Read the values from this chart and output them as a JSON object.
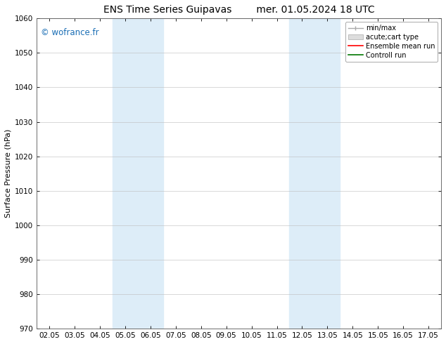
{
  "title": "ENS Time Series Guipavas",
  "title2": "mer. 01.05.2024 18 UTC",
  "ylabel": "Surface Pressure (hPa)",
  "ylim": [
    970,
    1060
  ],
  "yticks": [
    970,
    980,
    990,
    1000,
    1010,
    1020,
    1030,
    1040,
    1050,
    1060
  ],
  "xtick_labels": [
    "02.05",
    "03.05",
    "04.05",
    "05.05",
    "06.05",
    "07.05",
    "08.05",
    "09.05",
    "10.05",
    "11.05",
    "12.05",
    "13.05",
    "14.05",
    "15.05",
    "16.05",
    "17.05"
  ],
  "xtick_values": [
    0,
    1,
    2,
    3,
    4,
    5,
    6,
    7,
    8,
    9,
    10,
    11,
    12,
    13,
    14,
    15
  ],
  "xlim": [
    -0.5,
    15.5
  ],
  "shaded_regions": [
    {
      "xmin": 2.5,
      "xmax": 4.5
    },
    {
      "xmin": 9.5,
      "xmax": 11.5
    }
  ],
  "shaded_color": "#ddedf8",
  "background_color": "#ffffff",
  "plot_bg_color": "#ffffff",
  "watermark": "© wofrance.fr",
  "watermark_color": "#1a6eb5",
  "legend_labels": [
    "min/max",
    "acute;cart type",
    "Ensemble mean run",
    "Controll run"
  ],
  "legend_colors_line": [
    "#aaaaaa",
    "#cccccc",
    "#ff0000",
    "#008000"
  ],
  "title_fontsize": 10,
  "ylabel_fontsize": 8,
  "tick_fontsize": 7.5,
  "watermark_fontsize": 8.5
}
